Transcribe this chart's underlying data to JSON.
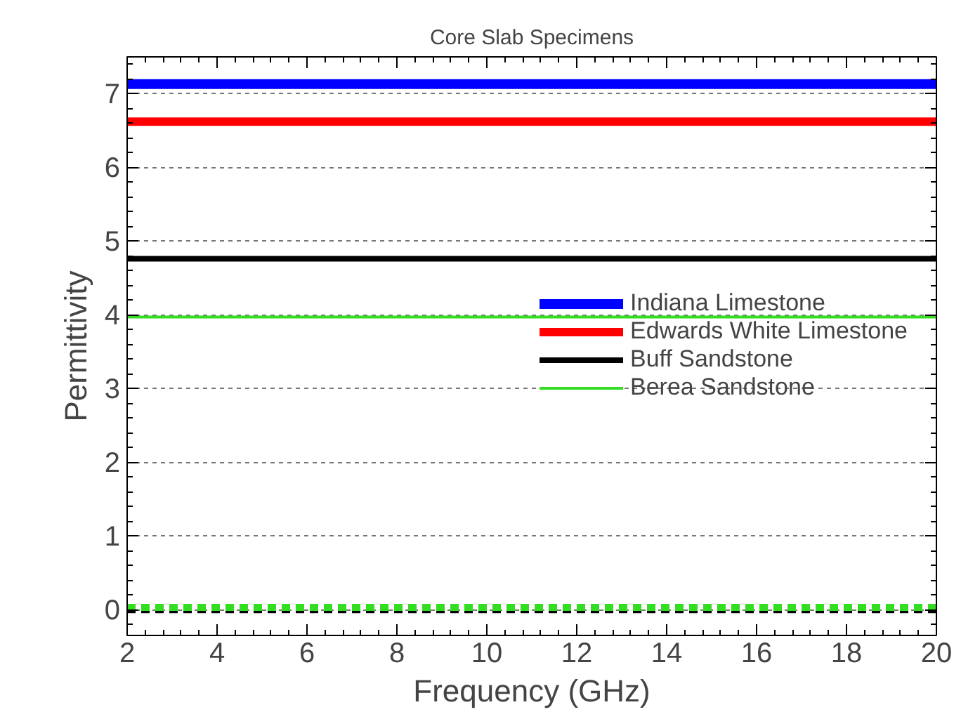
{
  "chart_data": {
    "type": "line",
    "title": "Core Slab Specimens",
    "xlabel": "Frequency (GHz)",
    "ylabel": "Permittivity",
    "x": [
      2,
      20
    ],
    "series": [
      {
        "name": "Indiana Limestone",
        "color": "#0000ff",
        "values": [
          7.13,
          7.13
        ]
      },
      {
        "name": "Edwards White Limestone",
        "color": "#ff0000",
        "values": [
          6.62,
          6.62
        ]
      },
      {
        "name": "Buff Sandstone",
        "color": "#000000",
        "values": [
          4.76,
          4.76
        ]
      },
      {
        "name": "Berea Sandstone",
        "color": "#33dd22",
        "values": [
          3.97,
          3.97
        ]
      },
      {
        "color": "#000000",
        "values": [
          0.0,
          0.0
        ],
        "line_style": "dashed"
      },
      {
        "color": "#33dd22",
        "values": [
          0.03,
          0.03
        ],
        "line_style": "dashed"
      }
    ],
    "xlim": [
      2,
      20
    ],
    "xticks": [
      2,
      4,
      6,
      8,
      10,
      12,
      14,
      16,
      18,
      20
    ],
    "ylim": [
      -0.35,
      7.5
    ],
    "yticks": [
      0,
      1,
      2,
      3,
      4,
      5,
      6,
      7
    ],
    "grid": "y",
    "legend": "right",
    "line_style": "solid",
    "marker": "none"
  }
}
